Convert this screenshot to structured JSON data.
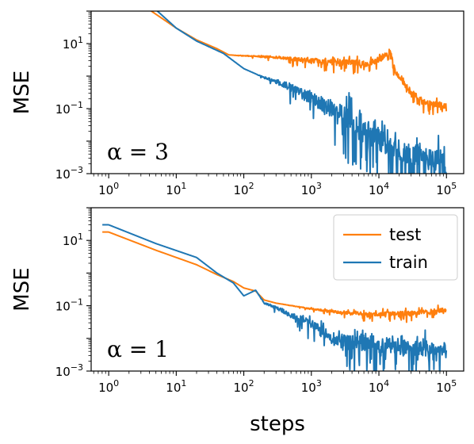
{
  "chart_data": [
    {
      "type": "line",
      "panel": "top",
      "annotation": "α = 3",
      "ylabel": "MSE",
      "xlabel": "",
      "xscale": "log",
      "yscale": "log",
      "xlim": [
        0.55,
        180000
      ],
      "ylim": [
        0.001,
        100
      ],
      "xticks": [
        {
          "value": 1,
          "base": "10",
          "exp": "0"
        },
        {
          "value": 10,
          "base": "10",
          "exp": "1"
        },
        {
          "value": 100,
          "base": "10",
          "exp": "2"
        },
        {
          "value": 1000,
          "base": "10",
          "exp": "3"
        },
        {
          "value": 10000,
          "base": "10",
          "exp": "4"
        },
        {
          "value": 100000,
          "base": "10",
          "exp": "5"
        }
      ],
      "yticks": [
        {
          "value": 0.001,
          "base": "10",
          "exp": "−3"
        },
        {
          "value": 0.1,
          "base": "10",
          "exp": "−1"
        },
        {
          "value": 10,
          "base": "10",
          "exp": "1"
        }
      ],
      "series": [
        {
          "name": "test",
          "color": "#ff7f0e",
          "noise": 0.08,
          "noise_start": 60,
          "points": [
            [
              1,
              800
            ],
            [
              4,
              110
            ],
            [
              10,
              30
            ],
            [
              20,
              13
            ],
            [
              40,
              7
            ],
            [
              60,
              4.5
            ],
            [
              100,
              4.2
            ],
            [
              300,
              3.8
            ],
            [
              1000,
              3.0
            ],
            [
              3000,
              2.9
            ],
            [
              7000,
              2.4
            ],
            [
              12000,
              4.0
            ],
            [
              15000,
              5.5
            ],
            [
              16500,
              2.0
            ],
            [
              18000,
              1.2
            ],
            [
              30000,
              0.3
            ],
            [
              50000,
              0.15
            ],
            [
              100000,
              0.12
            ]
          ]
        },
        {
          "name": "train",
          "color": "#1f77b4",
          "noise": 0.35,
          "noise_start": 150,
          "points": [
            [
              1,
              2000
            ],
            [
              5,
              110
            ],
            [
              10,
              30
            ],
            [
              20,
              12
            ],
            [
              50,
              5
            ],
            [
              100,
              1.7
            ],
            [
              200,
              0.9
            ],
            [
              400,
              0.55
            ],
            [
              1000,
              0.2
            ],
            [
              2000,
              0.1
            ],
            [
              4000,
              0.04
            ],
            [
              8000,
              0.015
            ],
            [
              20000,
              0.005
            ],
            [
              50000,
              0.003
            ],
            [
              100000,
              0.002
            ]
          ]
        }
      ],
      "legend": false
    },
    {
      "type": "line",
      "panel": "bottom",
      "annotation": "α = 1",
      "ylabel": "MSE",
      "xlabel": "steps",
      "xscale": "log",
      "yscale": "log",
      "xlim": [
        0.55,
        180000
      ],
      "ylim": [
        0.001,
        100
      ],
      "xticks": [
        {
          "value": 1,
          "base": "10",
          "exp": "0"
        },
        {
          "value": 10,
          "base": "10",
          "exp": "1"
        },
        {
          "value": 100,
          "base": "10",
          "exp": "2"
        },
        {
          "value": 1000,
          "base": "10",
          "exp": "3"
        },
        {
          "value": 10000,
          "base": "10",
          "exp": "4"
        },
        {
          "value": 100000,
          "base": "10",
          "exp": "5"
        }
      ],
      "yticks": [
        {
          "value": 0.001,
          "base": "10",
          "exp": "−3"
        },
        {
          "value": 0.1,
          "base": "10",
          "exp": "−1"
        },
        {
          "value": 10,
          "base": "10",
          "exp": "1"
        }
      ],
      "series": [
        {
          "name": "test",
          "color": "#ff7f0e",
          "noise": 0.06,
          "noise_start": 300,
          "points": [
            [
              1,
              18
            ],
            [
              5,
              5
            ],
            [
              20,
              1.8
            ],
            [
              40,
              0.9
            ],
            [
              70,
              0.55
            ],
            [
              100,
              0.35
            ],
            [
              150,
              0.28
            ],
            [
              200,
              0.15
            ],
            [
              300,
              0.12
            ],
            [
              1000,
              0.08
            ],
            [
              3000,
              0.06
            ],
            [
              10000,
              0.055
            ],
            [
              30000,
              0.06
            ],
            [
              100000,
              0.075
            ]
          ]
        },
        {
          "name": "train",
          "color": "#1f77b4",
          "noise": 0.22,
          "noise_start": 150,
          "points": [
            [
              1,
              30
            ],
            [
              5,
              8
            ],
            [
              20,
              3
            ],
            [
              40,
              1.0
            ],
            [
              70,
              0.5
            ],
            [
              100,
              0.2
            ],
            [
              150,
              0.3
            ],
            [
              200,
              0.12
            ],
            [
              300,
              0.09
            ],
            [
              500,
              0.05
            ],
            [
              1000,
              0.03
            ],
            [
              2000,
              0.01
            ],
            [
              4000,
              0.008
            ],
            [
              10000,
              0.006
            ],
            [
              30000,
              0.005
            ],
            [
              100000,
              0.004
            ]
          ]
        }
      ],
      "legend": true,
      "legend_placement": "top-right"
    }
  ]
}
